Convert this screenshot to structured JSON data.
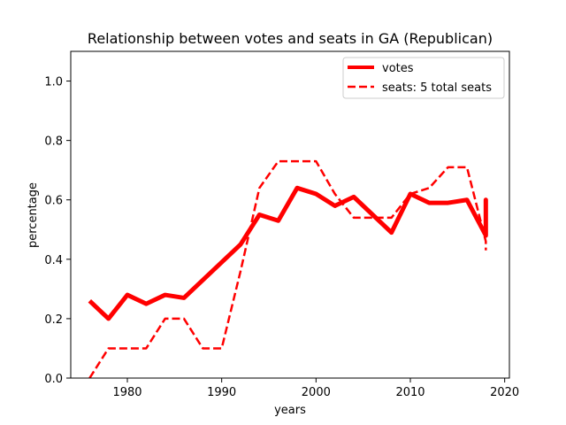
{
  "chart_data": {
    "type": "line",
    "title": "Relationship between votes and seats in GA (Republican)",
    "xlabel": "years",
    "ylabel": "percentage",
    "xlim": [
      1974,
      2020.5
    ],
    "ylim": [
      0.0,
      1.1
    ],
    "xticks": [
      1980,
      1990,
      2000,
      2010,
      2020
    ],
    "yticks": [
      0.0,
      0.2,
      0.4,
      0.6,
      0.8,
      1.0
    ],
    "grid": false,
    "legend_position": "top-right",
    "series": [
      {
        "name": "votes",
        "style": "solid-thick",
        "color": "#ff0000",
        "x": [
          1976,
          1978,
          1980,
          1982,
          1984,
          1986,
          1988,
          1990,
          1992,
          1994,
          1996,
          1998,
          2000,
          2002,
          2004,
          2006,
          2008,
          2010,
          2012,
          2014,
          2016,
          2018,
          2018,
          2018
        ],
        "y": [
          0.26,
          0.2,
          0.28,
          0.25,
          0.28,
          0.27,
          0.33,
          0.39,
          0.45,
          0.55,
          0.53,
          0.64,
          0.62,
          0.58,
          0.61,
          0.55,
          0.49,
          0.62,
          0.59,
          0.59,
          0.6,
          0.48,
          0.6,
          0.48
        ]
      },
      {
        "name": "seats: 5 total seats",
        "style": "dashed",
        "color": "#ff0000",
        "x": [
          1976,
          1978,
          1980,
          1982,
          1984,
          1986,
          1988,
          1990,
          1992,
          1994,
          1996,
          1998,
          2000,
          2002,
          2004,
          2006,
          2008,
          2010,
          2012,
          2014,
          2016,
          2018,
          2018
        ],
        "y": [
          0.0,
          0.1,
          0.1,
          0.1,
          0.2,
          0.2,
          0.1,
          0.1,
          0.36,
          0.64,
          0.73,
          0.73,
          0.73,
          0.62,
          0.54,
          0.54,
          0.54,
          0.62,
          0.64,
          0.71,
          0.71,
          0.46,
          0.43
        ]
      }
    ]
  }
}
